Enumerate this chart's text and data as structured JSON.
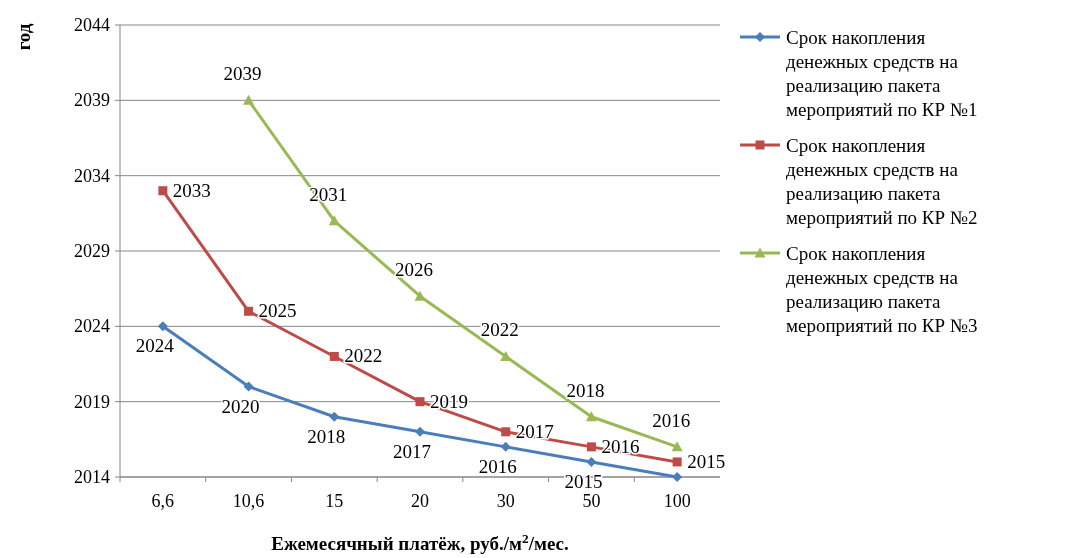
{
  "chart_data": {
    "type": "line",
    "xlabel": "Ежемесячный платёж, руб./м$^{2}$/мес.",
    "ylabel": "год",
    "categories": [
      "6,6",
      "10,6",
      "15",
      "20",
      "30",
      "50",
      "100"
    ],
    "series": [
      {
        "name": "Срок накопления денежных средств на реализацию пакета мероприятий по КР №1",
        "color": "#4a7ebb",
        "marker": "diamond",
        "values": [
          2024,
          2020,
          2018,
          2017,
          2016,
          2015,
          2014
        ],
        "value_labels": [
          "2024",
          "2020",
          "2018",
          "2017",
          "2016",
          "2015",
          null
        ]
      },
      {
        "name": "Срок накопления денежных средств на реализацию пакета мероприятий по КР №2",
        "color": "#be4b48",
        "marker": "square",
        "values": [
          2033,
          2025,
          2022,
          2019,
          2017,
          2016,
          2015
        ],
        "value_labels": [
          "2033",
          "2025",
          "2022",
          "2019",
          "2017",
          "2016",
          "2015"
        ]
      },
      {
        "name": "Срок накопления денежных средств на реализацию пакета мероприятий по КР №3",
        "color": "#98b954",
        "marker": "triangle",
        "values": [
          null,
          2039,
          2031,
          2026,
          2022,
          2018,
          2016
        ],
        "value_labels": [
          null,
          "2039",
          "2031",
          "2026",
          "2022",
          "2018",
          "2016"
        ]
      }
    ],
    "ylim": [
      2014,
      2044
    ],
    "yticks": [
      2014,
      2019,
      2024,
      2029,
      2034,
      2039,
      2044
    ],
    "grid": "y",
    "legend": "right"
  }
}
